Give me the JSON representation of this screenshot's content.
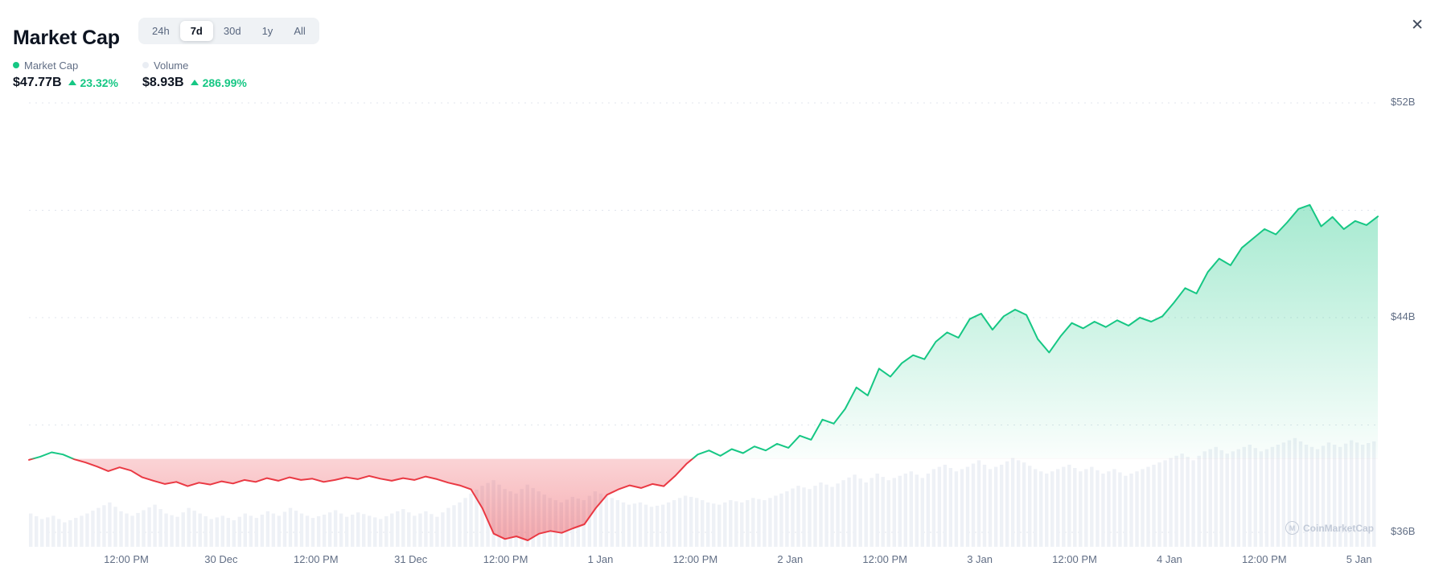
{
  "header": {
    "title": "Market Cap",
    "tabs": [
      {
        "label": "24h",
        "active": false
      },
      {
        "label": "7d",
        "active": true
      },
      {
        "label": "30d",
        "active": false
      },
      {
        "label": "1y",
        "active": false
      },
      {
        "label": "All",
        "active": false
      }
    ],
    "close_glyph": "✕"
  },
  "stats": {
    "market_cap": {
      "label": "Market Cap",
      "value": "$47.77B",
      "change": "23.32%",
      "direction": "up"
    },
    "volume": {
      "label": "Volume",
      "value": "$8.93B",
      "change": "286.99%",
      "direction": "up"
    }
  },
  "watermark": {
    "text": "CoinMarketCap",
    "logo_glyph": "M"
  },
  "colors": {
    "up": "#16c784",
    "down": "#ea3943",
    "volume_bar": "#eef1f6",
    "gridline": "#d9dfe9",
    "text_secondary": "#616e85"
  },
  "chart_data": {
    "type": "line",
    "title": "Market Cap",
    "series_name": "Market Cap (USD, billions)",
    "baseline": 38.74,
    "ylim": [
      36,
      52
    ],
    "gridlines": [
      52,
      48,
      44,
      40,
      36
    ],
    "y_tick_labels": [
      {
        "value": 52,
        "label": "$52B"
      },
      {
        "value": 44,
        "label": "$44B"
      },
      {
        "value": 36,
        "label": "$36B"
      }
    ],
    "x_tick_labels": [
      "12:00 PM",
      "30 Dec",
      "12:00 PM",
      "31 Dec",
      "12:00 PM",
      "1 Jan",
      "12:00 PM",
      "2 Jan",
      "12:00 PM",
      "3 Jan",
      "12:00 PM",
      "4 Jan",
      "12:00 PM",
      "5 Jan"
    ],
    "market_cap_values": [
      38.7,
      38.82,
      38.98,
      38.9,
      38.72,
      38.6,
      38.45,
      38.28,
      38.42,
      38.3,
      38.05,
      37.92,
      37.8,
      37.88,
      37.72,
      37.85,
      37.78,
      37.9,
      37.82,
      37.95,
      37.88,
      38.02,
      37.92,
      38.05,
      37.95,
      38.0,
      37.88,
      37.95,
      38.05,
      37.98,
      38.1,
      38.0,
      37.92,
      38.02,
      37.95,
      38.08,
      37.98,
      37.85,
      37.75,
      37.6,
      36.9,
      35.95,
      35.75,
      35.85,
      35.7,
      35.95,
      36.05,
      35.98,
      36.15,
      36.3,
      36.9,
      37.4,
      37.6,
      37.75,
      37.65,
      37.8,
      37.72,
      38.1,
      38.55,
      38.9,
      39.05,
      38.85,
      39.1,
      38.95,
      39.2,
      39.05,
      39.3,
      39.15,
      39.6,
      39.45,
      40.2,
      40.05,
      40.6,
      41.4,
      41.1,
      42.1,
      41.8,
      42.3,
      42.6,
      42.45,
      43.1,
      43.45,
      43.25,
      43.95,
      44.15,
      43.55,
      44.05,
      44.3,
      44.1,
      43.2,
      42.7,
      43.3,
      43.8,
      43.6,
      43.85,
      43.65,
      43.9,
      43.7,
      44.0,
      43.85,
      44.05,
      44.55,
      45.1,
      44.9,
      45.7,
      46.2,
      45.95,
      46.6,
      46.95,
      47.3,
      47.1,
      47.55,
      48.05,
      48.2,
      47.4,
      47.75,
      47.3,
      47.6,
      47.45,
      47.77
    ],
    "volume_relative": [
      0.3,
      0.25,
      0.28,
      0.22,
      0.26,
      0.3,
      0.35,
      0.4,
      0.32,
      0.28,
      0.33,
      0.38,
      0.3,
      0.27,
      0.35,
      0.3,
      0.25,
      0.28,
      0.24,
      0.3,
      0.26,
      0.32,
      0.28,
      0.35,
      0.3,
      0.26,
      0.29,
      0.33,
      0.27,
      0.31,
      0.28,
      0.25,
      0.3,
      0.34,
      0.28,
      0.32,
      0.27,
      0.35,
      0.4,
      0.48,
      0.55,
      0.6,
      0.52,
      0.48,
      0.56,
      0.5,
      0.44,
      0.4,
      0.45,
      0.42,
      0.5,
      0.46,
      0.42,
      0.38,
      0.4,
      0.36,
      0.38,
      0.42,
      0.46,
      0.44,
      0.4,
      0.38,
      0.42,
      0.4,
      0.44,
      0.42,
      0.46,
      0.5,
      0.55,
      0.52,
      0.58,
      0.54,
      0.6,
      0.65,
      0.58,
      0.66,
      0.6,
      0.64,
      0.68,
      0.62,
      0.7,
      0.74,
      0.68,
      0.72,
      0.78,
      0.7,
      0.74,
      0.8,
      0.76,
      0.7,
      0.66,
      0.7,
      0.74,
      0.68,
      0.72,
      0.66,
      0.7,
      0.64,
      0.68,
      0.72,
      0.76,
      0.8,
      0.84,
      0.78,
      0.86,
      0.9,
      0.84,
      0.88,
      0.92,
      0.86,
      0.9,
      0.94,
      0.98,
      0.92,
      0.88,
      0.94,
      0.9,
      0.96,
      0.92,
      0.95
    ]
  }
}
